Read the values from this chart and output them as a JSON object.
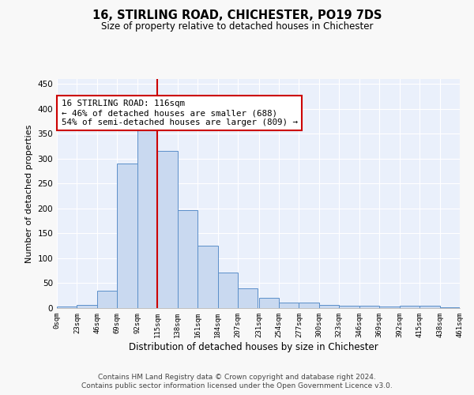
{
  "title": "16, STIRLING ROAD, CHICHESTER, PO19 7DS",
  "subtitle": "Size of property relative to detached houses in Chichester",
  "xlabel": "Distribution of detached houses by size in Chichester",
  "ylabel": "Number of detached properties",
  "bar_values": [
    3,
    6,
    35,
    290,
    360,
    315,
    196,
    126,
    72,
    40,
    21,
    11,
    11,
    7,
    4,
    4,
    3,
    5,
    4,
    2
  ],
  "bin_edges": [
    0,
    23,
    46,
    69,
    92,
    115,
    138,
    161,
    184,
    207,
    231,
    254,
    277,
    300,
    323,
    346,
    369,
    392,
    415,
    438,
    461
  ],
  "tick_labels": [
    "0sqm",
    "23sqm",
    "46sqm",
    "69sqm",
    "92sqm",
    "115sqm",
    "138sqm",
    "161sqm",
    "184sqm",
    "207sqm",
    "231sqm",
    "254sqm",
    "277sqm",
    "300sqm",
    "323sqm",
    "346sqm",
    "369sqm",
    "392sqm",
    "415sqm",
    "438sqm",
    "461sqm"
  ],
  "bar_facecolor": "#c9d9f0",
  "bar_edgecolor": "#5b8fc9",
  "vline_x": 115,
  "vline_color": "#cc0000",
  "annotation_text": "16 STIRLING ROAD: 116sqm\n← 46% of detached houses are smaller (688)\n54% of semi-detached houses are larger (809) →",
  "annotation_box_color": "#cc0000",
  "annotation_text_color": "#000000",
  "ylim": [
    0,
    460
  ],
  "yticks": [
    0,
    50,
    100,
    150,
    200,
    250,
    300,
    350,
    400,
    450
  ],
  "background_color": "#eaf0fb",
  "grid_color": "#ffffff",
  "fig_facecolor": "#f8f8f8",
  "footer_line1": "Contains HM Land Registry data © Crown copyright and database right 2024.",
  "footer_line2": "Contains public sector information licensed under the Open Government Licence v3.0."
}
